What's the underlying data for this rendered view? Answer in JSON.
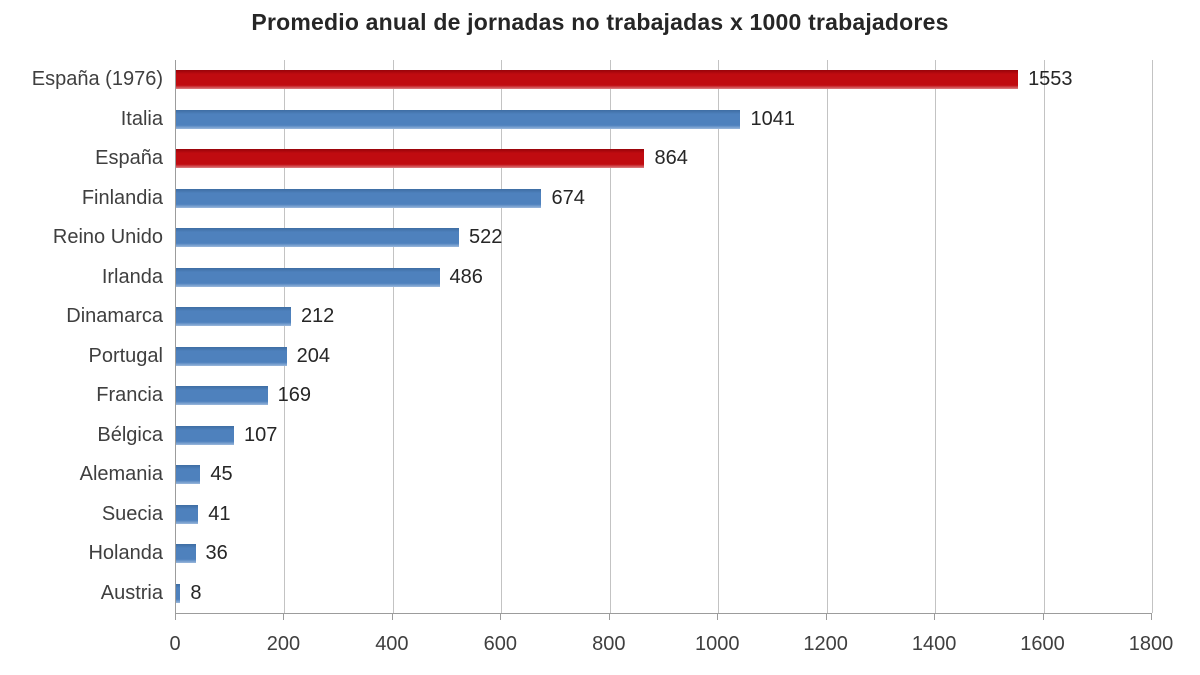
{
  "chart_data": {
    "type": "bar",
    "orientation": "horizontal",
    "title": "Promedio anual de jornadas no trabajadas x 1000 trabajadores",
    "categories": [
      "España (1976)",
      "Italia",
      "España",
      "Finlandia",
      "Reino Unido",
      "Irlanda",
      "Dinamarca",
      "Portugal",
      "Francia",
      "Bélgica",
      "Alemania",
      "Suecia",
      "Holanda",
      "Austria"
    ],
    "values": [
      1553,
      1041,
      864,
      674,
      522,
      486,
      212,
      204,
      169,
      107,
      45,
      41,
      36,
      8
    ],
    "bar_color_keys": [
      "highlight",
      "default",
      "highlight",
      "default",
      "default",
      "default",
      "default",
      "default",
      "default",
      "default",
      "default",
      "default",
      "default",
      "default"
    ],
    "xlabel": "",
    "ylabel": "",
    "xlim": [
      0,
      1800
    ],
    "x_ticks": [
      0,
      200,
      400,
      600,
      800,
      1000,
      1200,
      1400,
      1600,
      1800
    ],
    "grid": "vertical-major",
    "legend": "none",
    "value_labels": "outside-end",
    "colors": {
      "highlight": "#C00B10",
      "highlight_dark": "#97040A",
      "highlight_light": "#DD8184",
      "default": "#4E81BD",
      "default_dark": "#3E6DA3",
      "default_light": "#9AB8DC",
      "gridline": "#C3C3C3",
      "axis": "#9C9C9C",
      "title_text": "#262626",
      "label_text": "#3F3F3F"
    }
  }
}
